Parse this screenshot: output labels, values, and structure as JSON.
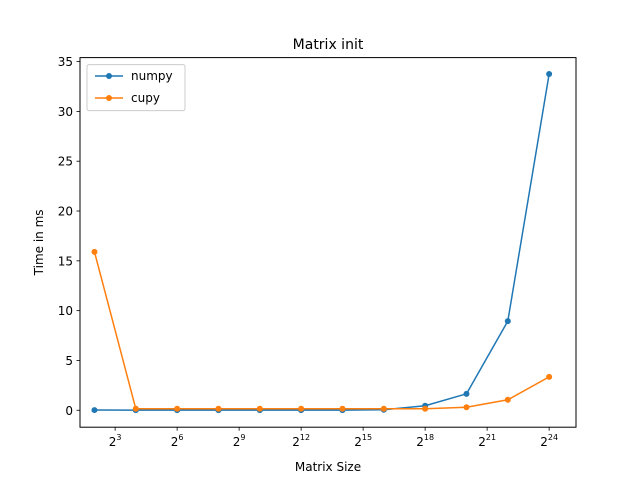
{
  "chart_data": {
    "type": "line",
    "title": "Matrix init",
    "xlabel": "Matrix Size",
    "ylabel": "Time in ms",
    "x_scale": "log2",
    "x": [
      4,
      16,
      64,
      256,
      1024,
      4096,
      16384,
      65536,
      262144,
      1048576,
      4194304,
      16777216
    ],
    "xlim_exp": [
      1.3,
      25.3
    ],
    "ylim": [
      -1.7,
      35.4
    ],
    "xticks": [
      {
        "base": "2",
        "exp": "3",
        "value": 3
      },
      {
        "base": "2",
        "exp": "6",
        "value": 6
      },
      {
        "base": "2",
        "exp": "9",
        "value": 9
      },
      {
        "base": "2",
        "exp": "12",
        "value": 12
      },
      {
        "base": "2",
        "exp": "15",
        "value": 15
      },
      {
        "base": "2",
        "exp": "18",
        "value": 18
      },
      {
        "base": "2",
        "exp": "21",
        "value": 21
      },
      {
        "base": "2",
        "exp": "24",
        "value": 24
      }
    ],
    "yticks": [
      0,
      5,
      10,
      15,
      20,
      25,
      30,
      35
    ],
    "grid": false,
    "legend_position": "top-left",
    "series": [
      {
        "name": "numpy",
        "color": "#1f77b4",
        "values": [
          0.02,
          0.01,
          0.01,
          0.01,
          0.01,
          0.01,
          0.01,
          0.05,
          0.45,
          1.65,
          8.95,
          33.75
        ]
      },
      {
        "name": "cupy",
        "color": "#ff7f0e",
        "values": [
          15.9,
          0.15,
          0.15,
          0.15,
          0.15,
          0.15,
          0.15,
          0.15,
          0.15,
          0.3,
          1.05,
          3.35
        ]
      }
    ]
  }
}
